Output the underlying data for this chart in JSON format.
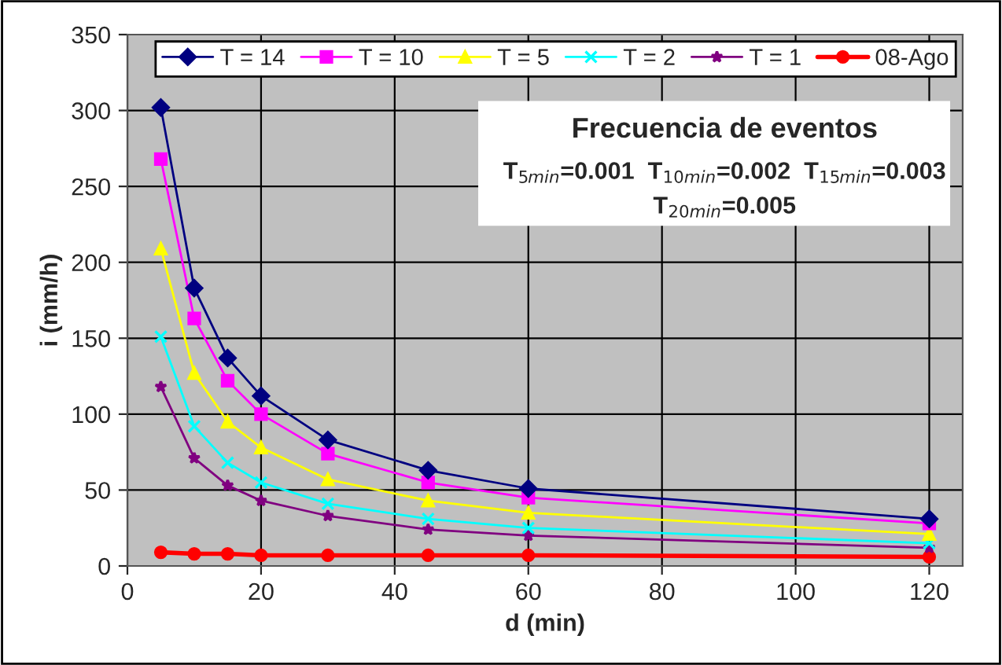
{
  "chart_data": {
    "type": "line",
    "xlabel": "d (min)",
    "ylabel": "i (mm/h)",
    "x": [
      5,
      10,
      15,
      20,
      30,
      45,
      60,
      120
    ],
    "series": [
      {
        "name": "T = 14",
        "color": "#000080",
        "marker": "diamond",
        "values": [
          302,
          183,
          137,
          112,
          83,
          63,
          51,
          31
        ]
      },
      {
        "name": "T = 10",
        "color": "#ff00ff",
        "marker": "square",
        "values": [
          268,
          163,
          122,
          100,
          74,
          55,
          45,
          28
        ]
      },
      {
        "name": "T = 5",
        "color": "#ffff00",
        "marker": "triangle",
        "values": [
          209,
          127,
          95,
          78,
          57,
          43,
          35,
          21
        ]
      },
      {
        "name": "T = 2",
        "color": "#00ffff",
        "marker": "cross",
        "values": [
          151,
          92,
          68,
          55,
          41,
          31,
          25,
          15
        ]
      },
      {
        "name": "T = 1",
        "color": "#800080",
        "marker": "star",
        "values": [
          118,
          71,
          53,
          43,
          33,
          24,
          20,
          12
        ]
      },
      {
        "name": "08-Ago",
        "color": "#ff0000",
        "marker": "circle",
        "values": [
          9,
          8,
          8,
          7,
          7,
          7,
          7,
          6
        ]
      }
    ],
    "xlim": [
      0,
      125
    ],
    "xticks": [
      0,
      20,
      40,
      60,
      80,
      100,
      120
    ],
    "ylim": [
      0,
      350
    ],
    "yticks": [
      0,
      50,
      100,
      150,
      200,
      250,
      300,
      350
    ],
    "grid": true,
    "legend": "top right",
    "annotations": [
      "Frecuencia de eventos",
      "T$_{5min}$=0.001  T$_{10min}$=0.002  T$_{15min}$=0.003",
      "T$_{20min}$=0.005"
    ]
  }
}
